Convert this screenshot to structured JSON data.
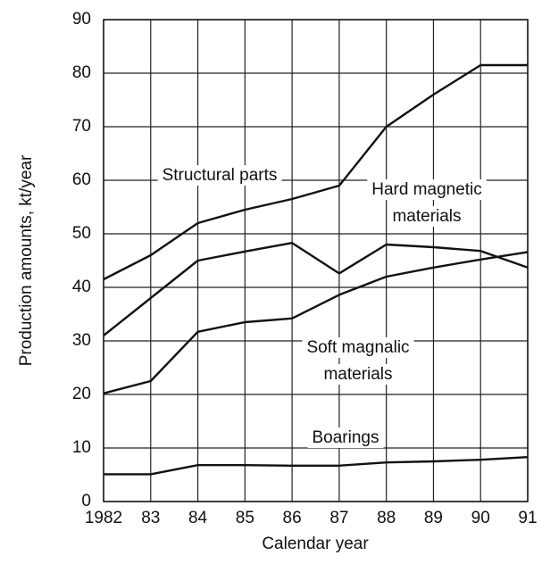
{
  "chart_data": {
    "type": "line",
    "x_label": "Calendar year",
    "y_label": "Production amounts, kt/year",
    "x": [
      1982,
      1983,
      1984,
      1985,
      1986,
      1987,
      1988,
      1989,
      1990,
      1991
    ],
    "xlim": [
      1982,
      1991
    ],
    "xticks": [
      {
        "value": 1982,
        "label": "1982"
      },
      {
        "value": 1983,
        "label": "83"
      },
      {
        "value": 1984,
        "label": "84"
      },
      {
        "value": 1985,
        "label": "85"
      },
      {
        "value": 1986,
        "label": "86"
      },
      {
        "value": 1987,
        "label": "87"
      },
      {
        "value": 1988,
        "label": "88"
      },
      {
        "value": 1989,
        "label": "89"
      },
      {
        "value": 1990,
        "label": "90"
      },
      {
        "value": 1991,
        "label": "91"
      }
    ],
    "ylim": [
      0,
      90
    ],
    "yticks": [
      0,
      10,
      20,
      30,
      40,
      50,
      60,
      70,
      80,
      90
    ],
    "grid": true,
    "series": [
      {
        "label": [
          "Structural parts"
        ],
        "color": "#111111",
        "values": [
          41.5,
          46,
          52,
          54.5,
          56.5,
          59,
          70,
          76,
          81.5,
          81.5
        ]
      },
      {
        "label": [
          "Hard magnetic",
          "materials"
        ],
        "color": "#111111",
        "values": [
          31,
          38,
          45,
          46.7,
          48.3,
          42.6,
          48,
          47.5,
          46.8,
          43.7
        ]
      },
      {
        "label": [
          "Soft magnalic",
          "materials"
        ],
        "color": "#111111",
        "values": [
          20.2,
          22.5,
          31.7,
          33.5,
          34.2,
          38.6,
          42,
          43.7,
          45.2,
          46.6
        ]
      },
      {
        "label": [
          "Boarings"
        ],
        "color": "#111111",
        "values": [
          5.1,
          5.1,
          6.8,
          6.8,
          6.7,
          6.7,
          7.3,
          7.5,
          7.8,
          8.3
        ]
      }
    ]
  }
}
